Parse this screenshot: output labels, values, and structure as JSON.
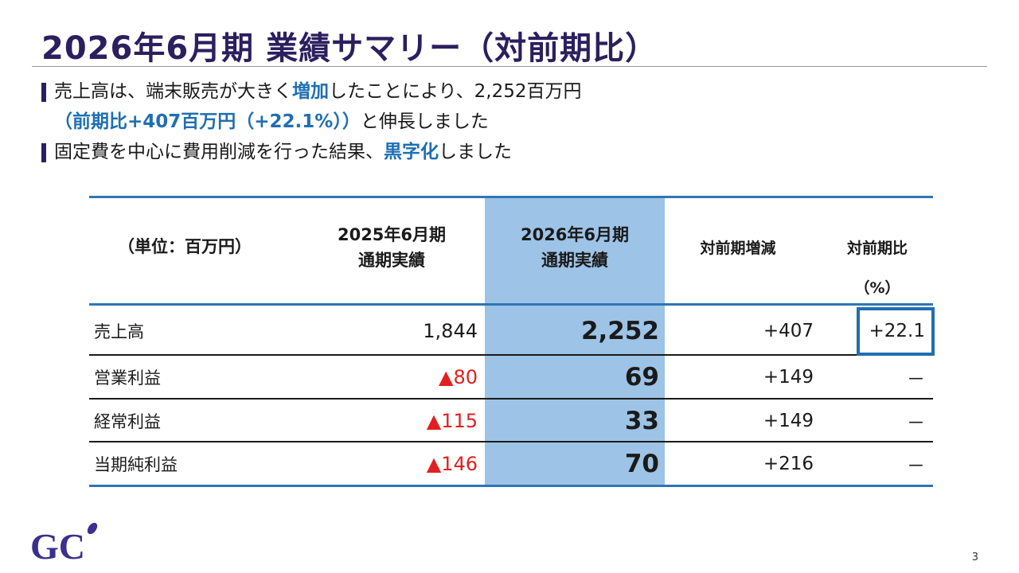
{
  "slide": {
    "title": "2026年6月期 業績サマリー（対前期比）",
    "page_number": "3"
  },
  "bullets": [
    {
      "line1": {
        "t1": "売上高は、端末販売が大きく",
        "hl": "増加",
        "t2": "したことにより、2,252百万円"
      },
      "line2": {
        "hl": "（前期比+407百万円（+22.1%））",
        "t2": "と伸長しました"
      }
    },
    {
      "line1": {
        "t1": "固定費を中心に費用削減を行った結果、",
        "hl": "黒字化",
        "t2": "しました"
      }
    }
  ],
  "table": {
    "headers": {
      "unit": "（単位：百万円）",
      "prev_line1": "2025年6月期",
      "prev_line2": "通期実績",
      "curr_line1": "2026年6月期",
      "curr_line2": "通期実績",
      "diff": "対前期増減",
      "ratio": "対前期比",
      "ratio_unit": "（%）"
    },
    "rows": [
      {
        "label": "売上高",
        "prev": "1,844",
        "curr": "2,252",
        "diff": "+407",
        "ratio": "+22.1"
      },
      {
        "label": "営業利益",
        "prev": "▲80",
        "curr": "69",
        "diff": "+149",
        "ratio": "－"
      },
      {
        "label": "経常利益",
        "prev": "▲115",
        "curr": "33",
        "diff": "+149",
        "ratio": "－"
      },
      {
        "label": "当期純利益",
        "prev": "▲146",
        "curr": "70",
        "diff": "+216",
        "ratio": "－"
      }
    ]
  },
  "logo": {
    "text": "GC"
  },
  "colors": {
    "title": "#2c1f5e",
    "highlight_text": "#1f6fb2",
    "highlight_column": "#9dc3e6",
    "negative": "#e02020",
    "table_rule": "#2e75b6"
  }
}
